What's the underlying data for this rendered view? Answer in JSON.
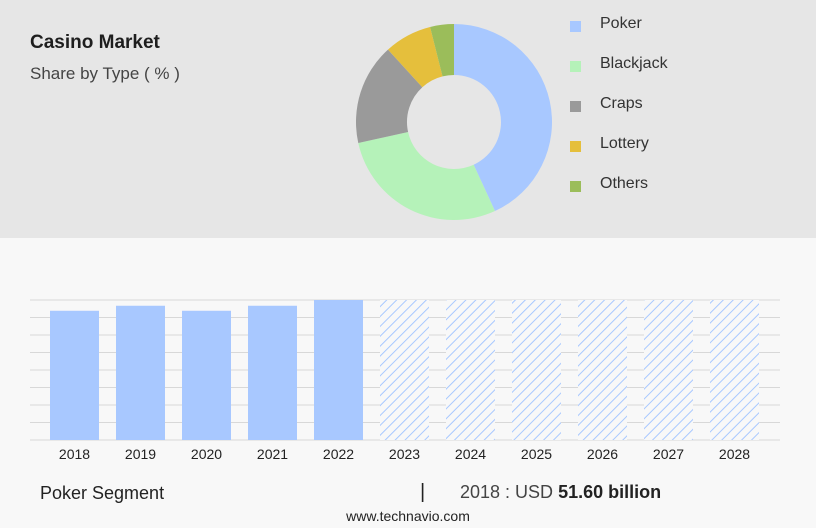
{
  "header": {
    "title": "Casino Market",
    "subtitle": "Share by Type ( % )"
  },
  "chart_data": [
    {
      "type": "pie",
      "variant": "donut",
      "categories": [
        "Poker",
        "Blackjack",
        "Craps",
        "Lottery",
        "Others"
      ],
      "values": [
        44,
        29,
        17,
        8,
        4
      ],
      "colors": [
        "#a8c8ff",
        "#b5f2b9",
        "#9a9a9a",
        "#e5bf3c",
        "#9bbd5a"
      ],
      "legend_placement": "right"
    },
    {
      "type": "bar",
      "categories": [
        "2018",
        "2019",
        "2020",
        "2021",
        "2022",
        "2023",
        "2024",
        "2025",
        "2026",
        "2027",
        "2028"
      ],
      "values": [
        51.6,
        53.6,
        51.6,
        53.6,
        55.9,
        55.9,
        55.9,
        55.9,
        55.9,
        55.9,
        55.9
      ],
      "forecast_from": "2023",
      "ylim": [
        0,
        55.9
      ],
      "grid": true,
      "bar_color": "#a8c8ff",
      "forecast_style": "hatched"
    }
  ],
  "footer": {
    "segment": "Poker Segment",
    "separator": "|",
    "year_label": "2018 : USD",
    "value": "51.60 billion",
    "website": "www.technavio.com"
  }
}
